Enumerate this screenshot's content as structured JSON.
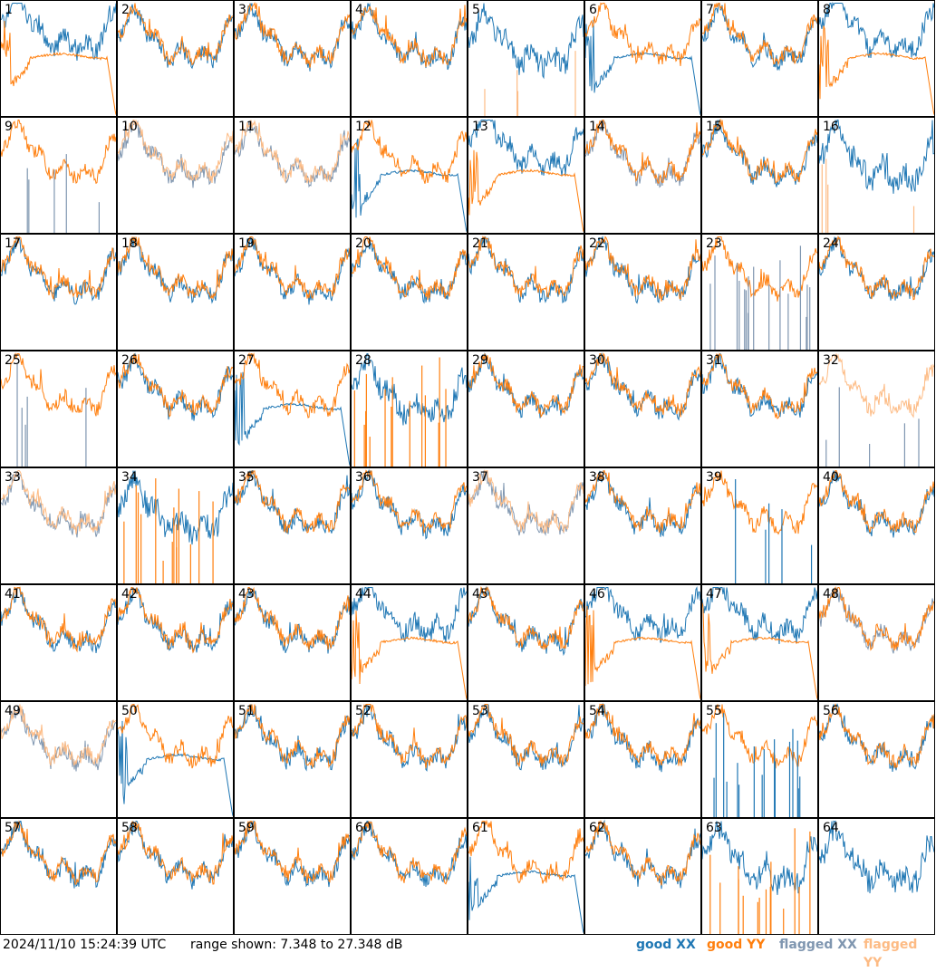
{
  "footer": {
    "timestamp": "2024/11/10 15:24:39 UTC",
    "range": "range shown: 7.348 to 27.348 dB"
  },
  "legend": {
    "good_xx": "good XX",
    "good_yy": "good YY",
    "flagged_xx": "flagged XX",
    "flagged_yy": "flagged YY"
  },
  "colors": {
    "good_xx": "#1f77b4",
    "good_yy": "#ff7f0e",
    "flagged_xx": "#7f96b0",
    "flagged_yy": "#fdbb84"
  },
  "chart_data": {
    "type": "line",
    "ylim": [
      7.348,
      27.348
    ],
    "grid": "8x8",
    "panels": [
      {
        "label": "1",
        "pattern": "decay",
        "xx": "good",
        "yy": "good"
      },
      {
        "label": "2",
        "pattern": "normal",
        "xx": "good",
        "yy": "good"
      },
      {
        "label": "3",
        "pattern": "normal",
        "xx": "good",
        "yy": "good"
      },
      {
        "label": "4",
        "pattern": "normal",
        "xx": "good",
        "yy": "good"
      },
      {
        "label": "5",
        "pattern": "yy_spikes",
        "xx": "good",
        "yy": "flagged"
      },
      {
        "label": "6",
        "pattern": "xx_decay",
        "xx": "good",
        "yy": "good"
      },
      {
        "label": "7",
        "pattern": "normal",
        "xx": "good",
        "yy": "good"
      },
      {
        "label": "8",
        "pattern": "decay",
        "xx": "good",
        "yy": "good"
      },
      {
        "label": "9",
        "pattern": "xx_spikes",
        "xx": "flagged",
        "yy": "good"
      },
      {
        "label": "10",
        "pattern": "normal",
        "xx": "flagged",
        "yy": "flagged"
      },
      {
        "label": "11",
        "pattern": "normal",
        "xx": "flagged",
        "yy": "flagged"
      },
      {
        "label": "12",
        "pattern": "xx_decay",
        "xx": "good",
        "yy": "good"
      },
      {
        "label": "13",
        "pattern": "decay",
        "xx": "good",
        "yy": "good"
      },
      {
        "label": "14",
        "pattern": "normal",
        "xx": "flagged",
        "yy": "good"
      },
      {
        "label": "15",
        "pattern": "normal",
        "xx": "good",
        "yy": "good"
      },
      {
        "label": "16",
        "pattern": "yy_spikes",
        "xx": "good",
        "yy": "flagged"
      },
      {
        "label": "17",
        "pattern": "normal",
        "xx": "good",
        "yy": "good"
      },
      {
        "label": "18",
        "pattern": "normal",
        "xx": "good",
        "yy": "good"
      },
      {
        "label": "19",
        "pattern": "normal",
        "xx": "good",
        "yy": "good"
      },
      {
        "label": "20",
        "pattern": "normal",
        "xx": "good",
        "yy": "good"
      },
      {
        "label": "21",
        "pattern": "normal",
        "xx": "good",
        "yy": "good"
      },
      {
        "label": "22",
        "pattern": "normal",
        "xx": "good",
        "yy": "good"
      },
      {
        "label": "23",
        "pattern": "xx_spikes",
        "xx": "flagged",
        "yy": "good"
      },
      {
        "label": "24",
        "pattern": "normal",
        "xx": "good",
        "yy": "good"
      },
      {
        "label": "25",
        "pattern": "xx_spikes",
        "xx": "flagged",
        "yy": "good"
      },
      {
        "label": "26",
        "pattern": "normal",
        "xx": "good",
        "yy": "good"
      },
      {
        "label": "27",
        "pattern": "xx_decay",
        "xx": "good",
        "yy": "good"
      },
      {
        "label": "28",
        "pattern": "yy_spikes",
        "xx": "good",
        "yy": "good"
      },
      {
        "label": "29",
        "pattern": "normal",
        "xx": "good",
        "yy": "good"
      },
      {
        "label": "30",
        "pattern": "normal",
        "xx": "good",
        "yy": "good"
      },
      {
        "label": "31",
        "pattern": "normal",
        "xx": "good",
        "yy": "good"
      },
      {
        "label": "32",
        "pattern": "xx_spikes",
        "xx": "flagged",
        "yy": "flagged"
      },
      {
        "label": "33",
        "pattern": "normal",
        "xx": "flagged",
        "yy": "flagged"
      },
      {
        "label": "34",
        "pattern": "yy_spikes",
        "xx": "good",
        "yy": "good"
      },
      {
        "label": "35",
        "pattern": "normal",
        "xx": "good",
        "yy": "good"
      },
      {
        "label": "36",
        "pattern": "normal",
        "xx": "good",
        "yy": "good"
      },
      {
        "label": "37",
        "pattern": "normal",
        "xx": "flagged",
        "yy": "flagged"
      },
      {
        "label": "38",
        "pattern": "normal",
        "xx": "good",
        "yy": "good"
      },
      {
        "label": "39",
        "pattern": "xx_spikes",
        "xx": "good",
        "yy": "good"
      },
      {
        "label": "40",
        "pattern": "normal",
        "xx": "good",
        "yy": "good"
      },
      {
        "label": "41",
        "pattern": "normal",
        "xx": "good",
        "yy": "good"
      },
      {
        "label": "42",
        "pattern": "normal",
        "xx": "good",
        "yy": "good"
      },
      {
        "label": "43",
        "pattern": "normal",
        "xx": "good",
        "yy": "good"
      },
      {
        "label": "44",
        "pattern": "decay",
        "xx": "good",
        "yy": "good"
      },
      {
        "label": "45",
        "pattern": "normal",
        "xx": "good",
        "yy": "good"
      },
      {
        "label": "46",
        "pattern": "decay",
        "xx": "good",
        "yy": "good"
      },
      {
        "label": "47",
        "pattern": "decay",
        "xx": "good",
        "yy": "good"
      },
      {
        "label": "48",
        "pattern": "normal",
        "xx": "flagged",
        "yy": "good"
      },
      {
        "label": "49",
        "pattern": "normal",
        "xx": "flagged",
        "yy": "flagged"
      },
      {
        "label": "50",
        "pattern": "xx_decay",
        "xx": "good",
        "yy": "good"
      },
      {
        "label": "51",
        "pattern": "normal",
        "xx": "good",
        "yy": "good"
      },
      {
        "label": "52",
        "pattern": "normal",
        "xx": "good",
        "yy": "good"
      },
      {
        "label": "53",
        "pattern": "normal",
        "xx": "good",
        "yy": "good"
      },
      {
        "label": "54",
        "pattern": "normal",
        "xx": "good",
        "yy": "good"
      },
      {
        "label": "55",
        "pattern": "xx_spikes",
        "xx": "good",
        "yy": "good"
      },
      {
        "label": "56",
        "pattern": "normal",
        "xx": "good",
        "yy": "good"
      },
      {
        "label": "57",
        "pattern": "normal",
        "xx": "good",
        "yy": "good"
      },
      {
        "label": "58",
        "pattern": "normal",
        "xx": "good",
        "yy": "good"
      },
      {
        "label": "59",
        "pattern": "normal",
        "xx": "good",
        "yy": "good"
      },
      {
        "label": "60",
        "pattern": "normal",
        "xx": "good",
        "yy": "good"
      },
      {
        "label": "61",
        "pattern": "xx_decay",
        "xx": "good",
        "yy": "good"
      },
      {
        "label": "62",
        "pattern": "normal",
        "xx": "good",
        "yy": "good"
      },
      {
        "label": "63",
        "pattern": "yy_spikes",
        "xx": "good",
        "yy": "good"
      },
      {
        "label": "64",
        "pattern": "yy_flat",
        "xx": "good",
        "yy": "good"
      }
    ]
  }
}
